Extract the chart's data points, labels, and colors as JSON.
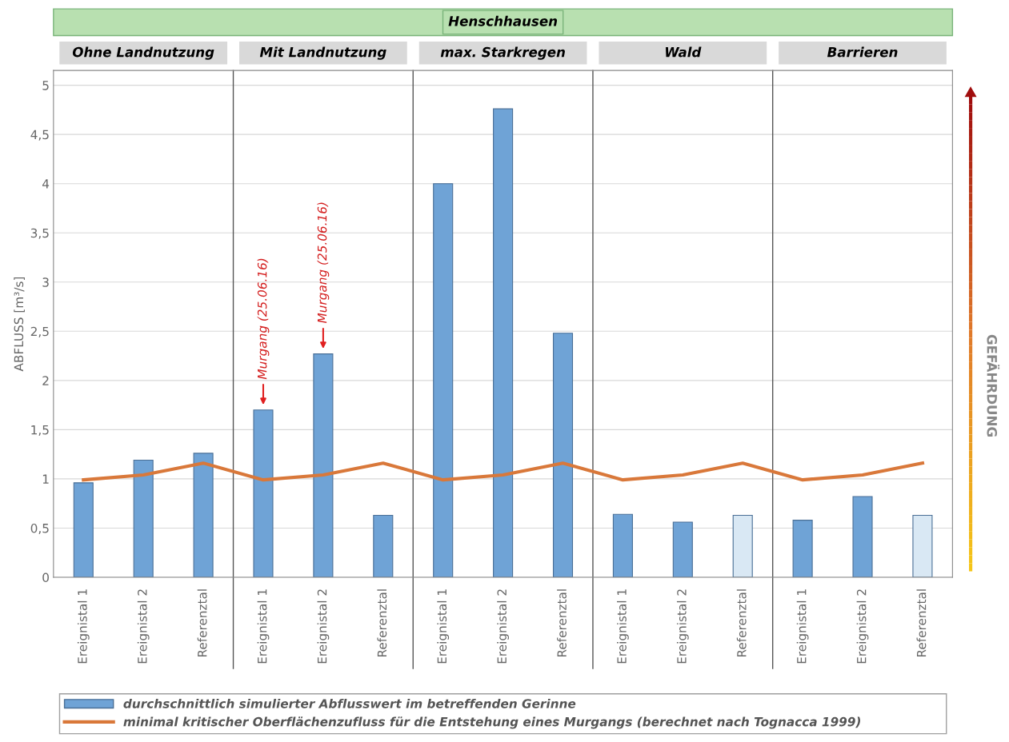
{
  "chart_data": {
    "type": "bar",
    "title": "Henschhausen",
    "ylabel": "ABFLUSS [m³/s]",
    "categories": [
      "Ereignistal 1",
      "Ereignistal 2",
      "Referenztal",
      "Ereignistal 1",
      "Ereignistal 2",
      "Referenztal",
      "Ereignistal 1",
      "Ereignistal 2",
      "Referenztal",
      "Ereignistal 1",
      "Ereignistal 2",
      "Referenztal",
      "Ereignistal 1",
      "Ereignistal 2",
      "Referenztal"
    ],
    "series": [
      {
        "name": "durchschnittlich simulierter Abflusswert im betreffenden Gerinne",
        "color": "#6fa3d6",
        "colors": [
          "#6fa3d6",
          "#6fa3d6",
          "#6fa3d6",
          "#6fa3d6",
          "#6fa3d6",
          "#6fa3d6",
          "#6fa3d6",
          "#6fa3d6",
          "#6fa3d6",
          "#6fa3d6",
          "#6fa3d6",
          "#d9e8f4",
          "#6fa3d6",
          "#6fa3d6",
          "#d9e8f4"
        ],
        "values": [
          0.96,
          1.19,
          1.26,
          1.7,
          2.27,
          0.63,
          4.0,
          4.76,
          2.48,
          0.64,
          0.56,
          0.63,
          0.58,
          0.82,
          0.63
        ]
      },
      {
        "name": "minimal kritischer Oberflächenzufluss für die Entstehung eines Murgangs (berechnet nach Tognacca 1999)",
        "type": "line",
        "color": "#d9783a",
        "values": [
          0.99,
          1.04,
          1.16,
          0.99,
          1.04,
          1.16,
          0.99,
          1.04,
          1.16,
          0.99,
          1.04,
          1.16,
          0.99,
          1.04,
          1.16
        ]
      }
    ],
    "ylim": [
      0,
      5.15
    ],
    "yticks": [
      0,
      {
        "value": 0.5,
        "label": "0,5"
      },
      1,
      {
        "value": 1.5,
        "label": "1,5"
      },
      2,
      {
        "value": 2.5,
        "label": "2,5"
      },
      3,
      {
        "value": 3.5,
        "label": "3,5"
      },
      4,
      {
        "value": 4.5,
        "label": "4,5"
      },
      5
    ],
    "grid": "y",
    "legend": "bottom",
    "annotations": [
      "Ohne Landnutzung",
      "Mit Landnutzung",
      "max. Starkregen",
      "Wald",
      "Barrieren",
      "GEFÄHRDUNG",
      "Murgang (25.06.16)",
      "Murgang (25.06.16)"
    ]
  }
}
